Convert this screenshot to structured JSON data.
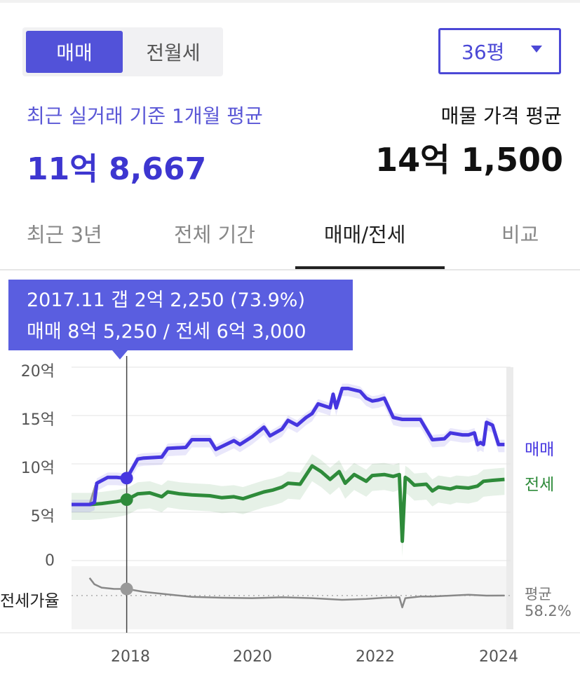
{
  "toggle": {
    "sale_label": "매매",
    "rent_label": "전월세"
  },
  "area_select": {
    "value": "36평"
  },
  "summary": {
    "recent_label": "최근 실거래 기준 1개월 평균",
    "recent_price": "11억 8,667",
    "listing_label": "매물 가격 평균",
    "listing_price": "14억 1,500"
  },
  "tabs": [
    {
      "label": "최근 3년",
      "active": false
    },
    {
      "label": "전체 기간",
      "active": false
    },
    {
      "label": "매매/전세",
      "active": true
    },
    {
      "label": "비교",
      "active": false
    }
  ],
  "tooltip": {
    "line1": "2017.11  갭 2억 2,250 (73.9%)",
    "line2": "매매 8억 5,250 / 전세 6억 3,000"
  },
  "colors": {
    "sale": "#4636e0",
    "jeonse": "#2e8b3a",
    "ratio": "#888888",
    "accent": "#5252d9"
  },
  "chart_data": {
    "type": "line",
    "x_unit": "year",
    "y_unit": "억",
    "ylim": [
      0,
      20
    ],
    "yticks": [
      0,
      5,
      10,
      15,
      20
    ],
    "ytick_labels": [
      "0",
      "5억",
      "10억",
      "15억",
      "20억"
    ],
    "xticks": [
      2018,
      2020,
      2022,
      2024
    ],
    "xtick_labels": [
      "2018",
      "2020",
      "2022",
      "2024"
    ],
    "xlim": [
      2017.0,
      2024.3
    ],
    "highlight": {
      "x": 2017.917,
      "sale": 8.525,
      "jeonse": 6.3,
      "ratio": 73.9
    },
    "series": [
      {
        "name": "매매",
        "x": [
          2017.0,
          2017.3,
          2017.38,
          2017.42,
          2017.6,
          2017.75,
          2017.92,
          2018.1,
          2018.2,
          2018.5,
          2018.6,
          2018.9,
          2019.0,
          2019.3,
          2019.4,
          2019.7,
          2019.8,
          2020.0,
          2020.2,
          2020.3,
          2020.5,
          2020.6,
          2020.75,
          2020.9,
          2021.0,
          2021.1,
          2021.3,
          2021.35,
          2021.4,
          2021.5,
          2021.6,
          2021.8,
          2021.9,
          2022.0,
          2022.1,
          2022.2,
          2022.35,
          2022.5,
          2022.6,
          2022.8,
          2023.0,
          2023.2,
          2023.3,
          2023.5,
          2023.6,
          2023.7,
          2023.75,
          2023.8,
          2023.85,
          2023.9,
          2024.0,
          2024.1,
          2024.2
        ],
        "values": [
          5.8,
          5.8,
          6.0,
          8.0,
          8.6,
          8.6,
          8.5,
          10.5,
          10.6,
          10.7,
          11.6,
          11.7,
          12.5,
          12.5,
          11.5,
          12.4,
          12.0,
          12.8,
          13.8,
          12.9,
          13.6,
          14.5,
          14.0,
          14.8,
          15.2,
          16.2,
          15.8,
          17.2,
          15.8,
          17.8,
          17.8,
          17.5,
          16.8,
          16.5,
          16.6,
          16.8,
          14.8,
          14.6,
          14.6,
          14.6,
          12.5,
          12.6,
          13.2,
          13.0,
          13.0,
          13.2,
          12.0,
          12.2,
          12.0,
          14.3,
          14.0,
          12.0,
          12.0
        ]
      },
      {
        "name": "전세",
        "x": [
          2017.0,
          2017.3,
          2017.5,
          2017.75,
          2017.92,
          2018.1,
          2018.3,
          2018.5,
          2018.6,
          2018.8,
          2019.0,
          2019.3,
          2019.5,
          2019.7,
          2019.85,
          2020.0,
          2020.2,
          2020.35,
          2020.5,
          2020.6,
          2020.8,
          2021.0,
          2021.15,
          2021.3,
          2021.45,
          2021.55,
          2021.7,
          2021.9,
          2022.0,
          2022.2,
          2022.35,
          2022.45,
          2022.5,
          2022.55,
          2022.6,
          2022.7,
          2022.9,
          2023.0,
          2023.1,
          2023.3,
          2023.4,
          2023.6,
          2023.75,
          2023.85,
          2024.0,
          2024.2
        ],
        "values": [
          5.8,
          5.8,
          5.9,
          6.1,
          6.3,
          6.9,
          7.0,
          6.6,
          7.1,
          6.9,
          6.8,
          6.7,
          6.5,
          6.6,
          6.4,
          6.7,
          7.1,
          7.3,
          7.6,
          8.0,
          7.9,
          9.8,
          9.2,
          8.4,
          9.2,
          8.0,
          8.9,
          8.2,
          8.8,
          8.9,
          8.7,
          8.9,
          2.0,
          8.6,
          8.4,
          7.8,
          7.9,
          7.2,
          7.6,
          7.4,
          7.6,
          7.5,
          7.7,
          8.2,
          8.3,
          8.4
        ]
      },
      {
        "name": "전세가율",
        "x": [
          2017.3,
          2017.38,
          2017.5,
          2017.7,
          2017.92,
          2018.2,
          2018.6,
          2019.0,
          2019.5,
          2020.0,
          2020.5,
          2021.0,
          2021.5,
          2021.9,
          2022.2,
          2022.45,
          2022.5,
          2022.55,
          2022.8,
          2023.0,
          2023.3,
          2023.6,
          2023.9,
          2024.2
        ],
        "values": [
          100,
          85,
          77,
          74,
          73.9,
          67,
          61,
          55,
          53,
          52,
          54,
          52,
          48,
          50,
          53,
          54,
          30,
          52,
          56,
          56,
          58,
          60,
          58,
          58.2
        ]
      }
    ],
    "ratio_avg": {
      "label": "평균",
      "value": "58.2%"
    },
    "ratio_panel_label": "전세가율"
  }
}
